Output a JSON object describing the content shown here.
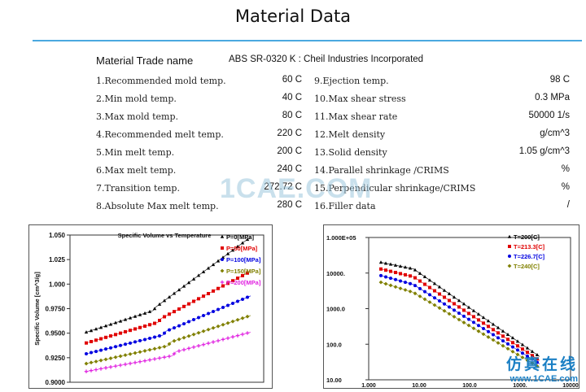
{
  "page": {
    "title": "Material Data",
    "trade_label": "Material Trade name",
    "trade_value": "ABS SR-0320 K : Cheil Industries Incorporated"
  },
  "properties_left": [
    {
      "label": "1.Recommended mold temp.",
      "value": "60 C"
    },
    {
      "label": "2.Min mold temp.",
      "value": "40 C"
    },
    {
      "label": "3.Max mold temp.",
      "value": "80 C"
    },
    {
      "label": "4.Recommended melt temp.",
      "value": "220 C"
    },
    {
      "label": "5.Min melt temp.",
      "value": "200 C"
    },
    {
      "label": "6.Max melt temp.",
      "value": "240 C"
    },
    {
      "label": "7.Transition temp.",
      "value": "272.72 C"
    },
    {
      "label": "8.Absolute Max melt temp.",
      "value": "280 C"
    }
  ],
  "properties_right": [
    {
      "label": "9.Ejection temp.",
      "value": "98 C"
    },
    {
      "label": "10.Max shear stress",
      "value": "0.3 MPa"
    },
    {
      "label": "11.Max shear rate",
      "value": "50000 1/s"
    },
    {
      "label": "12.Melt density",
      "value": "g/cm^3"
    },
    {
      "label": "13.Solid density",
      "value": "1.05 g/cm^3"
    },
    {
      "label": "14.Parallel shrinkage /CRIMS",
      "value": "%"
    },
    {
      "label": "15.Perpendicular shrinkage/CRIMS",
      "value": "%"
    },
    {
      "label": "16.Filler data",
      "value": "/"
    }
  ],
  "watermark": {
    "text": "1CAE.COM",
    "cn": "仿真在线",
    "url": "www.1CAE.com"
  },
  "chart_data": [
    {
      "type": "line",
      "title": "Specific Volume vs Temperature",
      "ylabel": "Specific Volume [cm^3/g]",
      "xlabel": "",
      "ylim": [
        0.9,
        1.05
      ],
      "yticks": [
        "1.050",
        "1.025",
        "1.000",
        "0.9750",
        "0.9500",
        "0.9250",
        "0.9000"
      ],
      "colors": [
        "#000000",
        "#e00000",
        "#0000e0",
        "#808000",
        "#e020e0"
      ],
      "markers": [
        "triangle",
        "square",
        "circle",
        "diamond",
        "plus"
      ],
      "series": [
        {
          "name": "P=0[MPa]",
          "values": [
            0.951,
            0.973,
            1.048
          ]
        },
        {
          "name": "P=50[MPa]",
          "values": [
            0.94,
            0.961,
            1.013
          ]
        },
        {
          "name": "P=100[MPa]",
          "values": [
            0.929,
            0.948,
            0.988
          ]
        },
        {
          "name": "P=150[MPa]",
          "values": [
            0.919,
            0.937,
            0.968
          ]
        },
        {
          "name": "P=200[MPa]",
          "values": [
            0.911,
            0.927,
            0.951
          ]
        }
      ]
    },
    {
      "type": "line",
      "log_scale": true,
      "title": "",
      "ylim": [
        10,
        100000
      ],
      "yticks": [
        "1.000E+05",
        "10000.",
        "1000.0",
        "100.0",
        "10.00"
      ],
      "xticks": [
        "1.000",
        "10.00",
        "100.0",
        "1000.",
        "10000"
      ],
      "colors": [
        "#000000",
        "#e00000",
        "#0000e0",
        "#808000"
      ],
      "markers": [
        "triangle",
        "square",
        "circle",
        "diamond"
      ],
      "series": [
        {
          "name": "T=200[C]",
          "values": [
            20000,
            45
          ]
        },
        {
          "name": "T=213.3[C]",
          "values": [
            13000,
            35
          ]
        },
        {
          "name": "T=226.7[C]",
          "values": [
            8500,
            28
          ]
        },
        {
          "name": "T=240[C]",
          "values": [
            5500,
            22
          ]
        }
      ]
    }
  ]
}
